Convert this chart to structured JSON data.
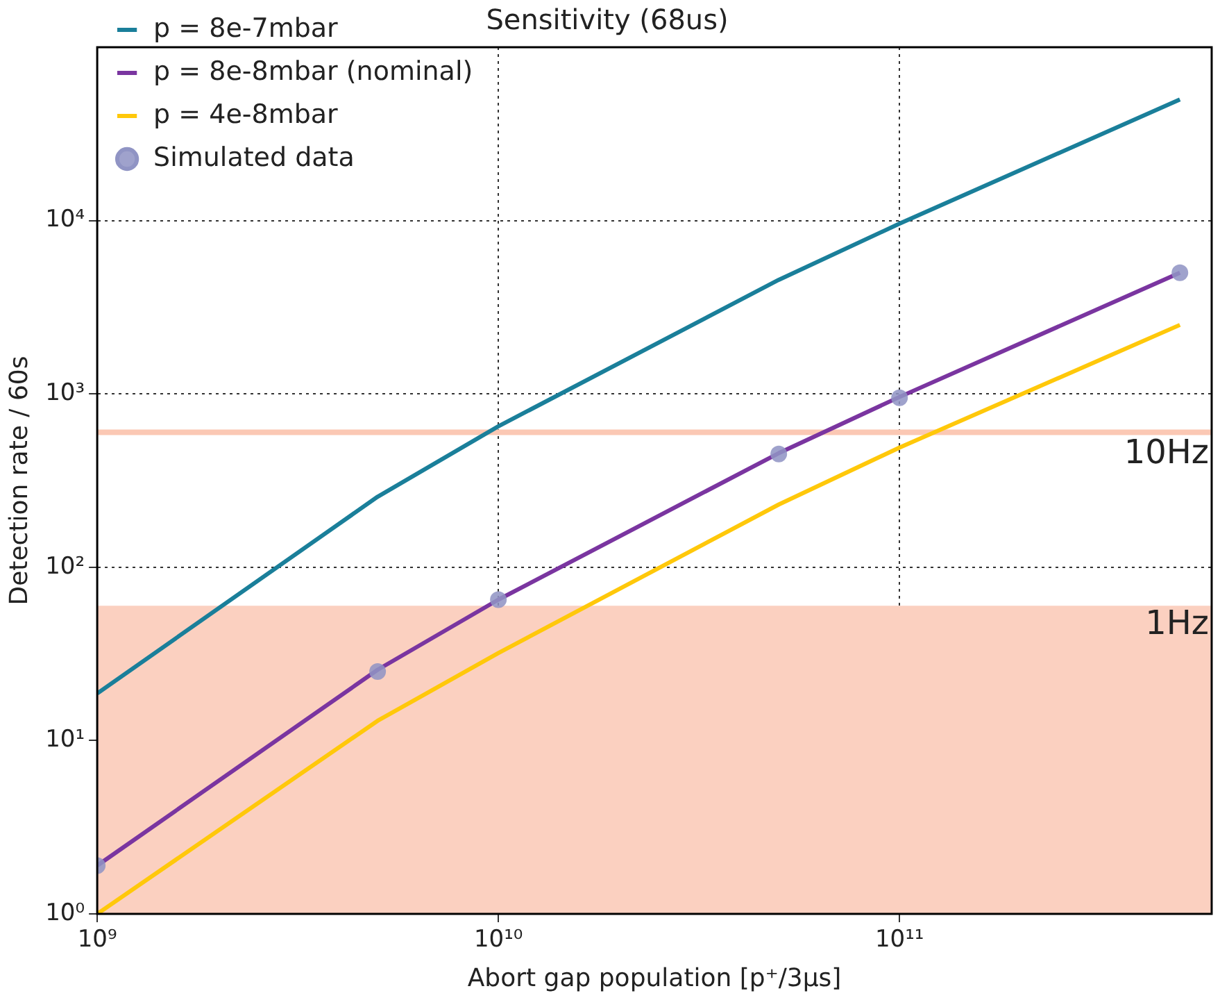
{
  "chart_data": {
    "type": "line",
    "title": "Sensitivity (68us)",
    "xlabel": "Abort gap population [p⁺/3μs]",
    "ylabel": "Detection rate / 60s",
    "log": "xy",
    "grid": true,
    "legend": "top left",
    "marker": "none",
    "xlim": [
      1000000000.0,
      600000000000.0
    ],
    "xticks": [
      {
        "value": 1000000000.0,
        "label": "10⁹"
      },
      {
        "value": 10000000000.0,
        "label": "10¹⁰"
      },
      {
        "value": 100000000000.0,
        "label": "10¹¹"
      }
    ],
    "ylim": [
      1,
      100000
    ],
    "yticks": [
      {
        "value": 1,
        "label": "10⁰"
      },
      {
        "value": 10,
        "label": "10¹"
      },
      {
        "value": 100,
        "label": "10²"
      },
      {
        "value": 1000,
        "label": "10³"
      },
      {
        "value": 10000,
        "label": "10⁴"
      }
    ],
    "x": [
      1000000000.0,
      5000000000.0,
      10000000000.0,
      50000000000.0,
      100000000000.0,
      500000000000.0
    ],
    "series": [
      {
        "name": "p = 8e-7mbar",
        "color": "#1a7f9a",
        "values": [
          18.7,
          255,
          650,
          4550,
          9600,
          50000
        ]
      },
      {
        "name": "p = 8e-8mbar (nominal)",
        "color": "#7a35a0",
        "values": [
          1.9,
          25.6,
          65,
          455,
          960,
          5000
        ]
      },
      {
        "name": "p = 4e-8mbar",
        "color": "#ffc80a",
        "values": [
          1.0,
          13,
          32,
          230,
          490,
          2500
        ]
      },
      {
        "name": "Simulated data",
        "type": "scatter",
        "marker": "circle",
        "color": "#9094c4",
        "values": [
          1.9,
          25,
          65,
          450,
          950,
          5000
        ]
      }
    ],
    "ref_lines": [
      {
        "axis": "y",
        "value": 600,
        "label": "10Hz",
        "color": "#fbc8b4"
      }
    ],
    "bands": [
      {
        "axis": "y",
        "from": 1,
        "to": 60,
        "label": "1Hz",
        "color": "#fbd0c0"
      }
    ]
  }
}
